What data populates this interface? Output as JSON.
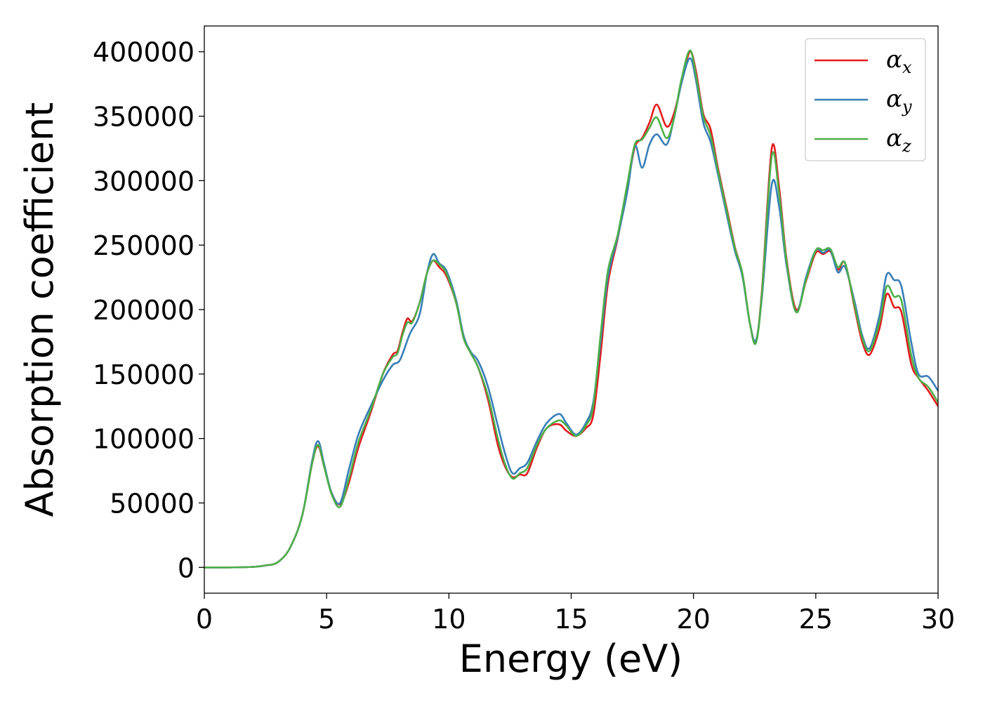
{
  "chart_data": {
    "type": "line",
    "title": "",
    "xlabel": "Energy (eV)",
    "ylabel": "Absorption coefficient",
    "xlim": [
      0,
      30
    ],
    "ylim": [
      -20000,
      420000
    ],
    "xticks": [
      0,
      5,
      10,
      15,
      20,
      25,
      30
    ],
    "yticks": [
      0,
      50000,
      100000,
      150000,
      200000,
      250000,
      300000,
      350000,
      400000
    ],
    "grid": false,
    "legend_position": "top-right",
    "series": [
      {
        "name": "α",
        "subscript": "x",
        "color": "#e41a1c",
        "points": [
          [
            0,
            0
          ],
          [
            1,
            0
          ],
          [
            2,
            400
          ],
          [
            2.5,
            1500
          ],
          [
            3,
            4000
          ],
          [
            3.5,
            15000
          ],
          [
            4,
            40000
          ],
          [
            4.4,
            80000
          ],
          [
            4.65,
            94000
          ],
          [
            4.9,
            78000
          ],
          [
            5.2,
            58000
          ],
          [
            5.55,
            49000
          ],
          [
            5.9,
            65000
          ],
          [
            6.3,
            93000
          ],
          [
            6.8,
            120000
          ],
          [
            7.3,
            150000
          ],
          [
            7.7,
            165000
          ],
          [
            7.9,
            168000
          ],
          [
            8.1,
            182000
          ],
          [
            8.3,
            193000
          ],
          [
            8.5,
            191000
          ],
          [
            8.8,
            205000
          ],
          [
            9.1,
            228000
          ],
          [
            9.35,
            238000
          ],
          [
            9.6,
            233000
          ],
          [
            9.9,
            226000
          ],
          [
            10.3,
            205000
          ],
          [
            10.6,
            178000
          ],
          [
            10.9,
            166000
          ],
          [
            11.2,
            155000
          ],
          [
            11.6,
            130000
          ],
          [
            12.0,
            95000
          ],
          [
            12.3,
            78000
          ],
          [
            12.6,
            70000
          ],
          [
            12.9,
            72000
          ],
          [
            13.2,
            73000
          ],
          [
            13.6,
            93000
          ],
          [
            14.0,
            108000
          ],
          [
            14.5,
            111000
          ],
          [
            14.8,
            106000
          ],
          [
            15.2,
            102000
          ],
          [
            15.6,
            108000
          ],
          [
            15.9,
            118000
          ],
          [
            16.2,
            165000
          ],
          [
            16.5,
            220000
          ],
          [
            16.9,
            255000
          ],
          [
            17.3,
            295000
          ],
          [
            17.6,
            326000
          ],
          [
            17.9,
            333000
          ],
          [
            18.2,
            345000
          ],
          [
            18.5,
            359000
          ],
          [
            18.9,
            342000
          ],
          [
            19.2,
            352000
          ],
          [
            19.5,
            375000
          ],
          [
            19.85,
            400000
          ],
          [
            20.1,
            385000
          ],
          [
            20.4,
            352000
          ],
          [
            20.7,
            340000
          ],
          [
            21.0,
            310000
          ],
          [
            21.4,
            275000
          ],
          [
            21.7,
            248000
          ],
          [
            22.0,
            228000
          ],
          [
            22.3,
            190000
          ],
          [
            22.55,
            175000
          ],
          [
            22.8,
            215000
          ],
          [
            23.2,
            325000
          ],
          [
            23.5,
            295000
          ],
          [
            23.8,
            240000
          ],
          [
            24.2,
            200000
          ],
          [
            24.6,
            222000
          ],
          [
            25.0,
            244000
          ],
          [
            25.3,
            243000
          ],
          [
            25.6,
            245000
          ],
          [
            25.9,
            231000
          ],
          [
            26.2,
            236000
          ],
          [
            26.6,
            200000
          ],
          [
            26.9,
            175000
          ],
          [
            27.2,
            165000
          ],
          [
            27.6,
            185000
          ],
          [
            27.9,
            212000
          ],
          [
            28.2,
            202000
          ],
          [
            28.5,
            198000
          ],
          [
            28.9,
            158000
          ],
          [
            29.2,
            147000
          ],
          [
            29.6,
            137000
          ],
          [
            30.0,
            125000
          ]
        ]
      },
      {
        "name": "α",
        "subscript": "y",
        "color": "#377eb8",
        "points": [
          [
            0,
            0
          ],
          [
            1,
            0
          ],
          [
            2,
            400
          ],
          [
            2.5,
            1500
          ],
          [
            3,
            4000
          ],
          [
            3.5,
            15000
          ],
          [
            4,
            40000
          ],
          [
            4.4,
            82000
          ],
          [
            4.65,
            98000
          ],
          [
            4.9,
            80000
          ],
          [
            5.2,
            58000
          ],
          [
            5.55,
            50000
          ],
          [
            5.9,
            75000
          ],
          [
            6.3,
            103000
          ],
          [
            6.8,
            125000
          ],
          [
            7.3,
            145000
          ],
          [
            7.7,
            157000
          ],
          [
            8.0,
            161000
          ],
          [
            8.4,
            181000
          ],
          [
            8.8,
            196000
          ],
          [
            9.1,
            228000
          ],
          [
            9.35,
            243000
          ],
          [
            9.6,
            236000
          ],
          [
            9.9,
            230000
          ],
          [
            10.3,
            207000
          ],
          [
            10.6,
            180000
          ],
          [
            10.9,
            167000
          ],
          [
            11.2,
            160000
          ],
          [
            11.6,
            140000
          ],
          [
            12.0,
            110000
          ],
          [
            12.3,
            88000
          ],
          [
            12.6,
            73000
          ],
          [
            12.9,
            77000
          ],
          [
            13.2,
            81000
          ],
          [
            13.6,
            98000
          ],
          [
            14.0,
            112000
          ],
          [
            14.5,
            119000
          ],
          [
            14.8,
            112000
          ],
          [
            15.2,
            103000
          ],
          [
            15.6,
            112000
          ],
          [
            15.9,
            128000
          ],
          [
            16.2,
            175000
          ],
          [
            16.5,
            225000
          ],
          [
            16.9,
            256000
          ],
          [
            17.3,
            292000
          ],
          [
            17.6,
            327000
          ],
          [
            17.9,
            310000
          ],
          [
            18.2,
            328000
          ],
          [
            18.5,
            336000
          ],
          [
            18.9,
            328000
          ],
          [
            19.2,
            348000
          ],
          [
            19.5,
            375000
          ],
          [
            19.85,
            395000
          ],
          [
            20.1,
            378000
          ],
          [
            20.4,
            345000
          ],
          [
            20.7,
            330000
          ],
          [
            21.0,
            305000
          ],
          [
            21.4,
            270000
          ],
          [
            21.7,
            245000
          ],
          [
            22.0,
            226000
          ],
          [
            22.3,
            190000
          ],
          [
            22.55,
            176000
          ],
          [
            22.8,
            210000
          ],
          [
            23.2,
            297000
          ],
          [
            23.5,
            280000
          ],
          [
            23.8,
            235000
          ],
          [
            24.2,
            198000
          ],
          [
            24.6,
            225000
          ],
          [
            25.0,
            246000
          ],
          [
            25.3,
            244000
          ],
          [
            25.6,
            246000
          ],
          [
            25.9,
            229000
          ],
          [
            26.2,
            233000
          ],
          [
            26.6,
            205000
          ],
          [
            26.9,
            180000
          ],
          [
            27.2,
            170000
          ],
          [
            27.6,
            195000
          ],
          [
            27.9,
            227000
          ],
          [
            28.2,
            223000
          ],
          [
            28.5,
            218000
          ],
          [
            28.9,
            175000
          ],
          [
            29.2,
            150000
          ],
          [
            29.6,
            148000
          ],
          [
            30.0,
            137000
          ]
        ]
      },
      {
        "name": "α",
        "subscript": "z",
        "color": "#4daf4a",
        "points": [
          [
            0,
            0
          ],
          [
            1,
            0
          ],
          [
            2,
            400
          ],
          [
            2.5,
            1500
          ],
          [
            3,
            4000
          ],
          [
            3.5,
            15000
          ],
          [
            4,
            40000
          ],
          [
            4.4,
            80000
          ],
          [
            4.65,
            95000
          ],
          [
            4.9,
            78000
          ],
          [
            5.2,
            57000
          ],
          [
            5.55,
            47000
          ],
          [
            5.9,
            68000
          ],
          [
            6.3,
            97000
          ],
          [
            6.8,
            122000
          ],
          [
            7.3,
            150000
          ],
          [
            7.7,
            163000
          ],
          [
            7.9,
            166000
          ],
          [
            8.1,
            180000
          ],
          [
            8.3,
            190000
          ],
          [
            8.5,
            190000
          ],
          [
            8.8,
            205000
          ],
          [
            9.1,
            228000
          ],
          [
            9.35,
            238000
          ],
          [
            9.6,
            235000
          ],
          [
            9.9,
            228000
          ],
          [
            10.3,
            205000
          ],
          [
            10.6,
            178000
          ],
          [
            10.9,
            166000
          ],
          [
            11.2,
            155000
          ],
          [
            11.6,
            133000
          ],
          [
            12.0,
            100000
          ],
          [
            12.3,
            80000
          ],
          [
            12.6,
            69000
          ],
          [
            12.9,
            73000
          ],
          [
            13.2,
            77000
          ],
          [
            13.6,
            95000
          ],
          [
            14.0,
            108000
          ],
          [
            14.5,
            114000
          ],
          [
            14.8,
            110000
          ],
          [
            15.2,
            102000
          ],
          [
            15.6,
            110000
          ],
          [
            15.9,
            125000
          ],
          [
            16.2,
            180000
          ],
          [
            16.5,
            230000
          ],
          [
            16.9,
            258000
          ],
          [
            17.3,
            298000
          ],
          [
            17.6,
            328000
          ],
          [
            17.9,
            332000
          ],
          [
            18.2,
            341000
          ],
          [
            18.5,
            349000
          ],
          [
            18.9,
            333000
          ],
          [
            19.2,
            348000
          ],
          [
            19.5,
            378000
          ],
          [
            19.85,
            401000
          ],
          [
            20.1,
            382000
          ],
          [
            20.4,
            350000
          ],
          [
            20.7,
            335000
          ],
          [
            21.0,
            308000
          ],
          [
            21.4,
            273000
          ],
          [
            21.7,
            247000
          ],
          [
            22.0,
            228000
          ],
          [
            22.3,
            190000
          ],
          [
            22.55,
            174000
          ],
          [
            22.8,
            213000
          ],
          [
            23.2,
            319000
          ],
          [
            23.5,
            290000
          ],
          [
            23.8,
            238000
          ],
          [
            24.2,
            198000
          ],
          [
            24.6,
            223000
          ],
          [
            25.0,
            246000
          ],
          [
            25.3,
            246000
          ],
          [
            25.6,
            247000
          ],
          [
            25.9,
            233000
          ],
          [
            26.2,
            236000
          ],
          [
            26.6,
            202000
          ],
          [
            26.9,
            178000
          ],
          [
            27.2,
            168000
          ],
          [
            27.6,
            190000
          ],
          [
            27.9,
            218000
          ],
          [
            28.2,
            210000
          ],
          [
            28.5,
            207000
          ],
          [
            28.9,
            165000
          ],
          [
            29.2,
            147000
          ],
          [
            29.6,
            140000
          ],
          [
            30.0,
            128000
          ]
        ]
      }
    ]
  }
}
